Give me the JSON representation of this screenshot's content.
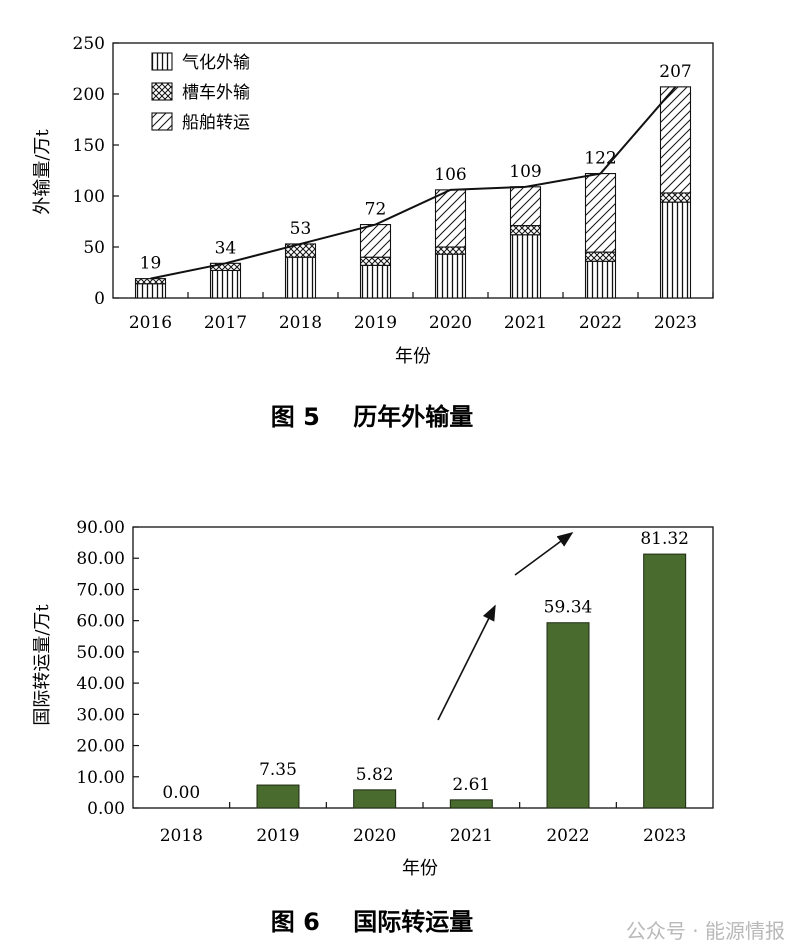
{
  "chart_data": [
    {
      "type": "bar",
      "stacked": true,
      "caption": "图 5    历年外输量",
      "xlabel": "年份",
      "ylabel": "外输量/万t",
      "ylim": [
        0,
        250
      ],
      "yticks": [
        "0",
        "50",
        "100",
        "150",
        "200",
        "250"
      ],
      "categories": [
        "2016",
        "2017",
        "2018",
        "2019",
        "2020",
        "2021",
        "2022",
        "2023"
      ],
      "series": [
        {
          "name": "气化外输",
          "pattern": "vertical-lines",
          "values": [
            14,
            27,
            40,
            32,
            43,
            62,
            36,
            94
          ]
        },
        {
          "name": "槽车外输",
          "pattern": "crosshatch",
          "values": [
            5,
            7,
            13,
            8,
            7,
            9,
            9,
            9
          ]
        },
        {
          "name": "船舶转运",
          "pattern": "diagonal-lines",
          "values": [
            0,
            0,
            0,
            32,
            56,
            38,
            77,
            104
          ]
        }
      ],
      "totals": [
        19,
        34,
        53,
        72,
        106,
        109,
        122,
        207
      ],
      "total_labels": [
        "19",
        "34",
        "53",
        "72",
        "106",
        "109",
        "122",
        "207"
      ],
      "legend_position": "top-left",
      "trend_line": true
    },
    {
      "type": "bar",
      "caption": "图 6    国际转运量",
      "xlabel": "年份",
      "ylabel": "国际转运量/万t",
      "ylim": [
        0,
        90
      ],
      "yticks": [
        "0.00",
        "10.00",
        "20.00",
        "30.00",
        "40.00",
        "50.00",
        "60.00",
        "70.00",
        "80.00",
        "90.00"
      ],
      "categories": [
        "2018",
        "2019",
        "2020",
        "2021",
        "2022",
        "2023"
      ],
      "values": [
        0.0,
        7.35,
        5.82,
        2.61,
        59.34,
        81.32
      ],
      "value_labels": [
        "0.00",
        "7.35",
        "5.82",
        "2.61",
        "59.34",
        "81.32"
      ],
      "bar_color": "#4a6b2e",
      "annotations": "two upward trend arrows"
    }
  ],
  "watermark": "公众号 · 能源情报"
}
